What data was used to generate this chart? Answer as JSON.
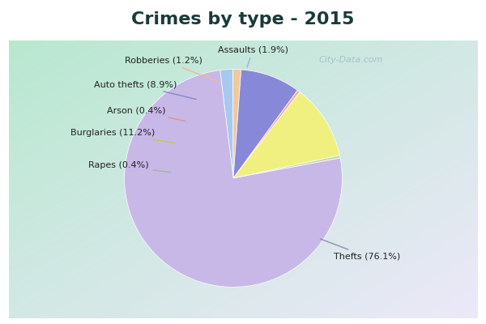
{
  "title": "Crimes by type - 2015",
  "title_fontsize": 16,
  "title_color": "#1a3a3a",
  "background_top_bar": "#00e8f0",
  "background_main_tl": "#b8e8d0",
  "background_main_br": "#e8e0f0",
  "cyan_border": "#00e8f0",
  "pie_labels": [
    "Assaults",
    "Robberies",
    "Auto thefts",
    "Arson",
    "Burglaries",
    "Rapes",
    "Thefts"
  ],
  "pie_values": [
    1.9,
    1.2,
    8.9,
    0.4,
    11.2,
    0.4,
    76.1
  ],
  "pie_colors": [
    "#a8c8f0",
    "#f0c8a0",
    "#8888d8",
    "#f0a8a8",
    "#f0f080",
    "#c8d8b0",
    "#c8b8e8"
  ],
  "label_texts": {
    "Assaults": "Assaults (1.9%)",
    "Robberies": "Robberies (1.2%)",
    "Auto thefts": "Auto thefts (8.9%)",
    "Arson": "Arson (0.4%)",
    "Burglaries": "Burglaries (11.2%)",
    "Rapes": "Rapes (0.4%)",
    "Thefts": "Thefts (76.1%)"
  },
  "watermark": "City-Data.com",
  "watermark_color": "#a0b8c8",
  "label_color": "#222222",
  "label_fontsize": 8,
  "startangle": 97
}
